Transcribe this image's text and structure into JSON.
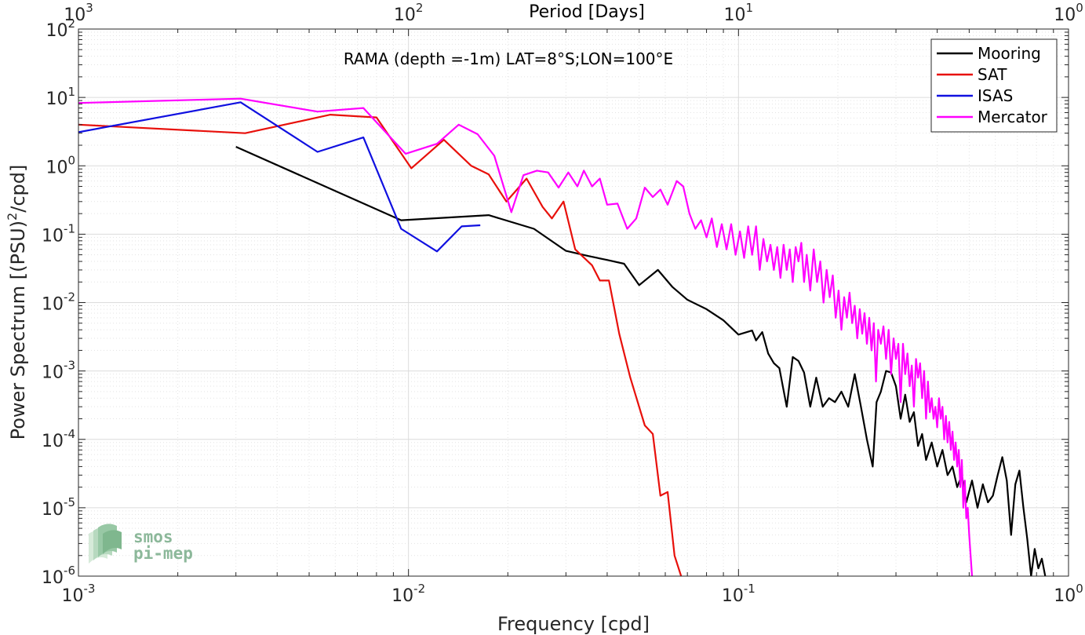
{
  "chart_data": {
    "type": "line",
    "title": "",
    "annotation": "RAMA (depth =-1m) LAT=8°S;LON=100°E",
    "xlabel": "Frequency [cpd]",
    "ylabel": "Power Spectrum [(PSU)",
    "ylabel_sup": "2",
    "ylabel_end": "/cpd]",
    "top_xlabel": "Period [Days]",
    "xscale": "log",
    "yscale": "log",
    "xlim": [
      0.001,
      1
    ],
    "ylim": [
      1e-06,
      100
    ],
    "grid": true,
    "legend_position": "top-right",
    "x_ticks": [
      {
        "value": 0.001,
        "base": "10",
        "exp": "-3"
      },
      {
        "value": 0.01,
        "base": "10",
        "exp": "-2"
      },
      {
        "value": 0.1,
        "base": "10",
        "exp": "-1"
      },
      {
        "value": 1,
        "base": "10",
        "exp": "0"
      }
    ],
    "y_ticks": [
      {
        "value": 1e-06,
        "base": "10",
        "exp": "-6"
      },
      {
        "value": 1e-05,
        "base": "10",
        "exp": "-5"
      },
      {
        "value": 0.0001,
        "base": "10",
        "exp": "-4"
      },
      {
        "value": 0.001,
        "base": "10",
        "exp": "-3"
      },
      {
        "value": 0.01,
        "base": "10",
        "exp": "-2"
      },
      {
        "value": 0.1,
        "base": "10",
        "exp": "-1"
      },
      {
        "value": 1,
        "base": "10",
        "exp": "0"
      },
      {
        "value": 10,
        "base": "10",
        "exp": "1"
      },
      {
        "value": 100,
        "base": "10",
        "exp": "2"
      }
    ],
    "top_ticks": [
      {
        "value": 1000,
        "base": "10",
        "exp": "3"
      },
      {
        "value": 100,
        "base": "10",
        "exp": "2"
      },
      {
        "value": 10,
        "base": "10",
        "exp": "1"
      },
      {
        "value": 1,
        "base": "10",
        "exp": "0"
      }
    ],
    "series": [
      {
        "name": "Mooring",
        "color": "#000000",
        "points": [
          [
            0.003,
            1.9
          ],
          [
            0.0095,
            0.16
          ],
          [
            0.0175,
            0.19
          ],
          [
            0.024,
            0.12
          ],
          [
            0.03,
            0.057
          ],
          [
            0.035,
            0.048
          ],
          [
            0.04,
            0.042
          ],
          [
            0.045,
            0.037
          ],
          [
            0.05,
            0.018
          ],
          [
            0.057,
            0.03
          ],
          [
            0.063,
            0.017
          ],
          [
            0.07,
            0.011
          ],
          [
            0.08,
            0.008
          ],
          [
            0.09,
            0.0055
          ],
          [
            0.1,
            0.0034
          ],
          [
            0.11,
            0.0039
          ],
          [
            0.113,
            0.0028
          ],
          [
            0.118,
            0.0037
          ],
          [
            0.123,
            0.0018
          ],
          [
            0.128,
            0.0013
          ],
          [
            0.133,
            0.0011
          ],
          [
            0.14,
            0.0003
          ],
          [
            0.146,
            0.0016
          ],
          [
            0.152,
            0.0014
          ],
          [
            0.158,
            0.00095
          ],
          [
            0.165,
            0.0003
          ],
          [
            0.172,
            0.0008
          ],
          [
            0.18,
            0.0003
          ],
          [
            0.188,
            0.0004
          ],
          [
            0.196,
            0.00035
          ],
          [
            0.205,
            0.0005
          ],
          [
            0.215,
            0.0003
          ],
          [
            0.225,
            0.0009
          ],
          [
            0.235,
            0.0003
          ],
          [
            0.245,
            0.0001
          ],
          [
            0.255,
            4e-05
          ],
          [
            0.262,
            0.00035
          ],
          [
            0.27,
            0.0005
          ],
          [
            0.28,
            0.001
          ],
          [
            0.29,
            0.00095
          ],
          [
            0.3,
            0.0006
          ],
          [
            0.31,
            0.0002
          ],
          [
            0.32,
            0.00045
          ],
          [
            0.33,
            0.00018
          ],
          [
            0.34,
            0.00025
          ],
          [
            0.35,
            8e-05
          ],
          [
            0.36,
            0.00012
          ],
          [
            0.37,
            5e-05
          ],
          [
            0.385,
            9e-05
          ],
          [
            0.4,
            4e-05
          ],
          [
            0.415,
            7e-05
          ],
          [
            0.43,
            3e-05
          ],
          [
            0.445,
            4e-05
          ],
          [
            0.46,
            2e-05
          ],
          [
            0.475,
            3e-05
          ],
          [
            0.49,
            1.2e-05
          ],
          [
            0.51,
            2.5e-05
          ],
          [
            0.53,
            1e-05
          ],
          [
            0.55,
            2.2e-05
          ],
          [
            0.57,
            1.2e-05
          ],
          [
            0.59,
            1.5e-05
          ],
          [
            0.61,
            3e-05
          ],
          [
            0.63,
            5.5e-05
          ],
          [
            0.65,
            2.5e-05
          ],
          [
            0.67,
            4e-06
          ],
          [
            0.69,
            2.2e-05
          ],
          [
            0.71,
            3.5e-05
          ],
          [
            0.73,
            1e-05
          ],
          [
            0.75,
            3.5e-06
          ],
          [
            0.77,
            1e-06
          ],
          [
            0.79,
            2.5e-06
          ],
          [
            0.81,
            1.3e-06
          ],
          [
            0.83,
            1.8e-06
          ],
          [
            0.85,
            1e-06
          ]
        ]
      },
      {
        "name": "SAT",
        "color": "#e8100b",
        "points": [
          [
            0.001,
            4.0
          ],
          [
            0.0032,
            3.0
          ],
          [
            0.0058,
            5.6
          ],
          [
            0.008,
            5.1
          ],
          [
            0.0102,
            0.92
          ],
          [
            0.0128,
            2.4
          ],
          [
            0.0155,
            1.0
          ],
          [
            0.0175,
            0.75
          ],
          [
            0.0198,
            0.3
          ],
          [
            0.0228,
            0.65
          ],
          [
            0.0255,
            0.25
          ],
          [
            0.0272,
            0.17
          ],
          [
            0.0295,
            0.3
          ],
          [
            0.032,
            0.06
          ],
          [
            0.036,
            0.035
          ],
          [
            0.038,
            0.021
          ],
          [
            0.0405,
            0.021
          ],
          [
            0.0435,
            0.0035
          ],
          [
            0.047,
            0.0008
          ],
          [
            0.052,
            0.00016
          ],
          [
            0.055,
            0.00012
          ],
          [
            0.058,
            1.5e-05
          ],
          [
            0.061,
            1.7e-05
          ],
          [
            0.064,
            2e-06
          ],
          [
            0.067,
            1e-06
          ]
        ]
      },
      {
        "name": "ISAS",
        "color": "#1010e0",
        "points": [
          [
            0.001,
            3.1
          ],
          [
            0.0031,
            8.5
          ],
          [
            0.0053,
            1.6
          ],
          [
            0.0073,
            2.6
          ],
          [
            0.0095,
            0.12
          ],
          [
            0.0122,
            0.056
          ],
          [
            0.0145,
            0.13
          ],
          [
            0.0165,
            0.135
          ]
        ]
      },
      {
        "name": "Mercator",
        "color": "#ff00ff",
        "points": [
          [
            0.001,
            8.3
          ],
          [
            0.0031,
            9.6
          ],
          [
            0.0053,
            6.2
          ],
          [
            0.0073,
            7.0
          ],
          [
            0.0098,
            1.5
          ],
          [
            0.0122,
            2.1
          ],
          [
            0.0142,
            4.0
          ],
          [
            0.0162,
            2.9
          ],
          [
            0.0182,
            1.4
          ],
          [
            0.0205,
            0.21
          ],
          [
            0.0223,
            0.73
          ],
          [
            0.0245,
            0.85
          ],
          [
            0.0265,
            0.8
          ],
          [
            0.0285,
            0.48
          ],
          [
            0.0305,
            0.8
          ],
          [
            0.0325,
            0.5
          ],
          [
            0.034,
            0.85
          ],
          [
            0.036,
            0.5
          ],
          [
            0.038,
            0.65
          ],
          [
            0.04,
            0.27
          ],
          [
            0.043,
            0.28
          ],
          [
            0.046,
            0.12
          ],
          [
            0.049,
            0.17
          ],
          [
            0.052,
            0.48
          ],
          [
            0.055,
            0.35
          ],
          [
            0.058,
            0.45
          ],
          [
            0.061,
            0.27
          ],
          [
            0.065,
            0.6
          ],
          [
            0.068,
            0.5
          ],
          [
            0.071,
            0.2
          ],
          [
            0.074,
            0.12
          ],
          [
            0.077,
            0.16
          ],
          [
            0.08,
            0.09
          ],
          [
            0.083,
            0.17
          ],
          [
            0.086,
            0.065
          ],
          [
            0.089,
            0.14
          ],
          [
            0.092,
            0.06
          ],
          [
            0.095,
            0.14
          ],
          [
            0.098,
            0.05
          ],
          [
            0.101,
            0.11
          ],
          [
            0.104,
            0.045
          ],
          [
            0.107,
            0.13
          ],
          [
            0.11,
            0.05
          ],
          [
            0.113,
            0.13
          ],
          [
            0.116,
            0.03
          ],
          [
            0.119,
            0.085
          ],
          [
            0.122,
            0.04
          ],
          [
            0.125,
            0.07
          ],
          [
            0.128,
            0.03
          ],
          [
            0.131,
            0.065
          ],
          [
            0.134,
            0.023
          ],
          [
            0.137,
            0.07
          ],
          [
            0.14,
            0.03
          ],
          [
            0.143,
            0.06
          ],
          [
            0.146,
            0.02
          ],
          [
            0.149,
            0.065
          ],
          [
            0.152,
            0.04
          ],
          [
            0.155,
            0.075
          ],
          [
            0.158,
            0.02
          ],
          [
            0.161,
            0.05
          ],
          [
            0.165,
            0.015
          ],
          [
            0.169,
            0.06
          ],
          [
            0.173,
            0.02
          ],
          [
            0.177,
            0.04
          ],
          [
            0.181,
            0.01
          ],
          [
            0.185,
            0.03
          ],
          [
            0.189,
            0.012
          ],
          [
            0.193,
            0.025
          ],
          [
            0.197,
            0.006
          ],
          [
            0.201,
            0.015
          ],
          [
            0.205,
            0.004
          ],
          [
            0.209,
            0.012
          ],
          [
            0.213,
            0.006
          ],
          [
            0.217,
            0.014
          ],
          [
            0.221,
            0.005
          ],
          [
            0.225,
            0.009
          ],
          [
            0.229,
            0.003
          ],
          [
            0.233,
            0.008
          ],
          [
            0.237,
            0.0035
          ],
          [
            0.241,
            0.007
          ],
          [
            0.245,
            0.0025
          ],
          [
            0.249,
            0.006
          ],
          [
            0.253,
            0.002
          ],
          [
            0.257,
            0.005
          ],
          [
            0.261,
            0.0007
          ],
          [
            0.265,
            0.004
          ],
          [
            0.27,
            0.0025
          ],
          [
            0.275,
            0.0045
          ],
          [
            0.28,
            0.0015
          ],
          [
            0.285,
            0.004
          ],
          [
            0.29,
            0.0009
          ],
          [
            0.295,
            0.003
          ],
          [
            0.3,
            0.0015
          ],
          [
            0.305,
            0.0025
          ],
          [
            0.31,
            0.00035
          ],
          [
            0.315,
            0.0025
          ],
          [
            0.32,
            0.0009
          ],
          [
            0.325,
            0.0018
          ],
          [
            0.33,
            0.0006
          ],
          [
            0.335,
            0.0012
          ],
          [
            0.34,
            0.0003
          ],
          [
            0.345,
            0.0015
          ],
          [
            0.35,
            0.0008
          ],
          [
            0.355,
            0.0013
          ],
          [
            0.36,
            0.0004
          ],
          [
            0.365,
            0.001
          ],
          [
            0.37,
            0.0002
          ],
          [
            0.375,
            0.0007
          ],
          [
            0.38,
            0.00025
          ],
          [
            0.385,
            0.0004
          ],
          [
            0.39,
            0.0002
          ],
          [
            0.395,
            0.0003
          ],
          [
            0.4,
            0.00015
          ],
          [
            0.405,
            0.0004
          ],
          [
            0.41,
            0.0002
          ],
          [
            0.415,
            0.0003
          ],
          [
            0.42,
            0.0001
          ],
          [
            0.425,
            0.00022
          ],
          [
            0.43,
            9e-05
          ],
          [
            0.435,
            0.00018
          ],
          [
            0.44,
            7e-05
          ],
          [
            0.445,
            0.00013
          ],
          [
            0.45,
            5e-05
          ],
          [
            0.455,
            9e-05
          ],
          [
            0.46,
            4e-05
          ],
          [
            0.465,
            7e-05
          ],
          [
            0.47,
            2e-05
          ],
          [
            0.475,
            5e-05
          ],
          [
            0.48,
            1e-05
          ],
          [
            0.485,
            2.5e-05
          ],
          [
            0.49,
            7e-06
          ],
          [
            0.495,
            1e-05
          ],
          [
            0.5,
            4e-06
          ],
          [
            0.505,
            2e-06
          ],
          [
            0.51,
            1e-06
          ]
        ]
      }
    ]
  },
  "logo": {
    "line1": "smos",
    "line2": "pi-mep"
  }
}
